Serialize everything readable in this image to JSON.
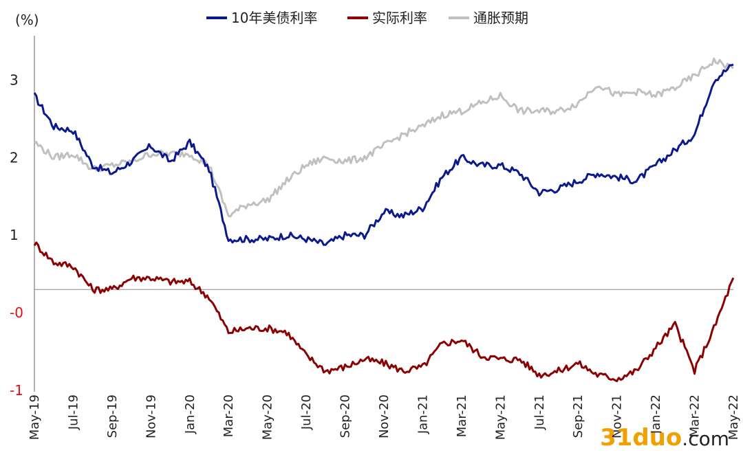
{
  "chart_data": {
    "type": "line",
    "unit_label": "(%)",
    "ylim": [
      -1,
      3.5
    ],
    "yticks": [
      {
        "value": 3,
        "label": "3"
      },
      {
        "value": 2,
        "label": "2"
      },
      {
        "value": 1,
        "label": "1"
      },
      {
        "value": 0,
        "label": "-0"
      },
      {
        "value": -1,
        "label": "-1"
      }
    ],
    "negative_tick_color": "#e01010",
    "baseline": 0.3,
    "x_ticks": [
      "May-19",
      "Jul-19",
      "Sep-19",
      "Nov-19",
      "Jan-20",
      "Mar-20",
      "May-20",
      "Jul-20",
      "Sep-20",
      "Nov-20",
      "Jan-21",
      "Mar-21",
      "May-21",
      "Jul-21",
      "Sep-21",
      "Nov-21",
      "Jan-22",
      "Mar-22",
      "May-22"
    ],
    "x": [
      "2019-05",
      "2019-06",
      "2019-07",
      "2019-08",
      "2019-09",
      "2019-10",
      "2019-11",
      "2019-12",
      "2020-01",
      "2020-02",
      "2020-03",
      "2020-04",
      "2020-05",
      "2020-06",
      "2020-07",
      "2020-08",
      "2020-09",
      "2020-10",
      "2020-11",
      "2020-12",
      "2021-01",
      "2021-02",
      "2021-03",
      "2021-04",
      "2021-05",
      "2021-06",
      "2021-07",
      "2021-08",
      "2021-09",
      "2021-10",
      "2021-11",
      "2021-12",
      "2022-01",
      "2022-02",
      "2022-03",
      "2022-04",
      "2022-05"
    ],
    "series": [
      {
        "name": "10年美债利率",
        "color": "#0a1a8c",
        "values": [
          2.8,
          2.4,
          2.35,
          1.9,
          1.8,
          1.95,
          2.15,
          1.95,
          2.2,
          1.85,
          0.95,
          0.95,
          0.95,
          1.0,
          0.95,
          0.88,
          1.0,
          1.0,
          1.3,
          1.25,
          1.35,
          1.75,
          2.0,
          1.9,
          1.9,
          1.8,
          1.55,
          1.6,
          1.7,
          1.8,
          1.75,
          1.7,
          1.9,
          2.1,
          2.3,
          3.0,
          3.2
        ]
      },
      {
        "name": "实际利率",
        "color": "#8b0000",
        "values": [
          0.9,
          0.65,
          0.6,
          0.3,
          0.3,
          0.45,
          0.45,
          0.4,
          0.4,
          0.2,
          -0.25,
          -0.2,
          -0.2,
          -0.25,
          -0.55,
          -0.75,
          -0.7,
          -0.6,
          -0.65,
          -0.75,
          -0.7,
          -0.4,
          -0.35,
          -0.55,
          -0.6,
          -0.6,
          -0.8,
          -0.75,
          -0.65,
          -0.8,
          -0.85,
          -0.75,
          -0.45,
          -0.15,
          -0.75,
          -0.2,
          0.45
        ]
      },
      {
        "name": "通胀预期",
        "color": "#c0c0c0",
        "values": [
          2.2,
          2.0,
          2.05,
          1.85,
          1.9,
          1.95,
          2.05,
          2.05,
          2.05,
          1.9,
          1.25,
          1.4,
          1.45,
          1.7,
          1.9,
          2.0,
          1.95,
          2.0,
          2.15,
          2.3,
          2.4,
          2.55,
          2.6,
          2.7,
          2.8,
          2.6,
          2.6,
          2.6,
          2.7,
          2.95,
          2.8,
          2.85,
          2.8,
          2.9,
          3.05,
          3.25,
          3.15
        ]
      }
    ],
    "legend": "top"
  },
  "watermark": {
    "part1": "31duo",
    "part2": ".com"
  }
}
